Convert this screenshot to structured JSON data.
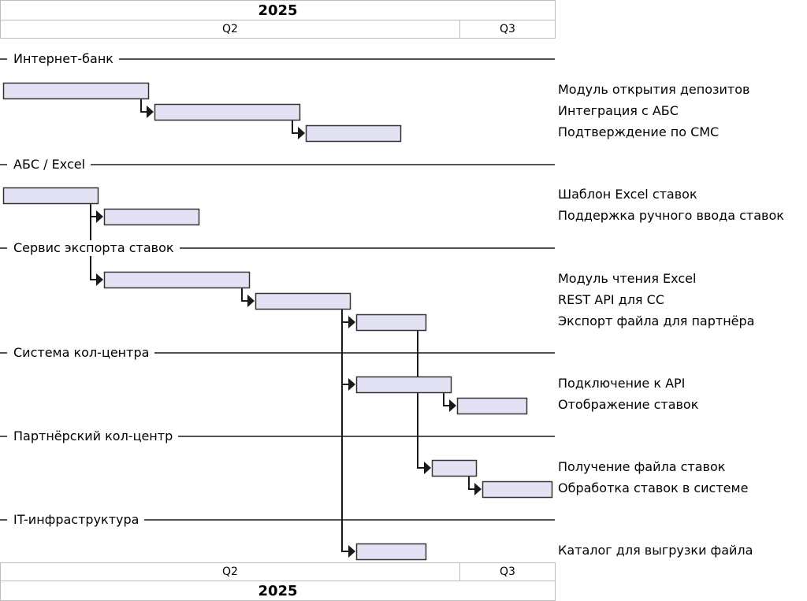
{
  "header": {
    "year": "2025",
    "quarters": [
      "Q2",
      "Q3"
    ]
  },
  "footer": {
    "year": "2025",
    "quarters": [
      "Q2",
      "Q3"
    ]
  },
  "chart_data": {
    "type": "gantt",
    "sections": [
      {
        "name": "Интернет-банк",
        "tasks": [
          {
            "name": "Модуль открытия депозитов"
          },
          {
            "name": "Интеграция с АБС"
          },
          {
            "name": "Подтверждение по СМС"
          }
        ]
      },
      {
        "name": "АБС / Excel",
        "tasks": [
          {
            "name": "Шаблон Excel ставок"
          },
          {
            "name": "Поддержка ручного ввода ставок"
          }
        ]
      },
      {
        "name": "Сервис экспорта ставок",
        "tasks": [
          {
            "name": "Модуль чтения Excel"
          },
          {
            "name": "REST API для CC"
          },
          {
            "name": "Экспорт файла для партнёра"
          }
        ]
      },
      {
        "name": "Система кол-центра",
        "tasks": [
          {
            "name": "Подключение к API"
          },
          {
            "name": "Отображение ставок"
          }
        ]
      },
      {
        "name": "Партнёрский кол-центр",
        "tasks": [
          {
            "name": "Получение файла ставок"
          },
          {
            "name": "Обработка ставок в системе"
          }
        ]
      },
      {
        "name": "IT-инфраструктура",
        "tasks": [
          {
            "name": "Каталог для выгрузки файла"
          }
        ]
      }
    ],
    "colors": {
      "bar_fill": "#e2e2f4",
      "bar_stroke": "#333333",
      "line": "#1a1a1a"
    }
  }
}
